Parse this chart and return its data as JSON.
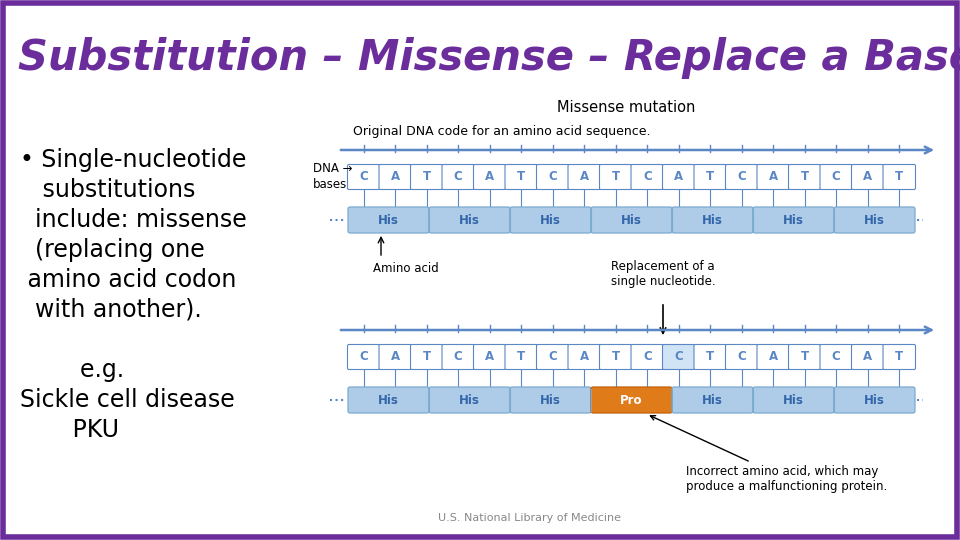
{
  "title": "Substitution – Missense – Replace a Base",
  "title_color": "#6B2D9B",
  "bg_color": "#ffffff",
  "border_color": "#6B2D9B",
  "bullet_lines": [
    "• Single-nucleotide",
    "   substitutions",
    "  include: missense",
    "  (replacing one",
    " amino acid codon",
    "  with another).",
    "",
    "        e.g.",
    "Sickle cell disease",
    "       PKU"
  ],
  "dna_bases_top": [
    "C",
    "A",
    "T",
    "C",
    "A",
    "T",
    "C",
    "A",
    "T",
    "C",
    "A",
    "T",
    "C",
    "A",
    "T",
    "C",
    "A",
    "T"
  ],
  "dna_bases_bottom": [
    "C",
    "A",
    "T",
    "C",
    "A",
    "T",
    "C",
    "A",
    "T",
    "C",
    "C",
    "T",
    "C",
    "A",
    "T",
    "C",
    "A",
    "T"
  ],
  "mutated_base_index": 10,
  "amino_acids_top": [
    "His",
    "His",
    "His",
    "His",
    "His",
    "His",
    "His"
  ],
  "amino_acids_bottom": [
    "His",
    "His",
    "His",
    "Pro",
    "His",
    "His",
    "His"
  ],
  "mutated_aa_index": 3,
  "missense_label": "Missense mutation",
  "original_label": "Original DNA code for an amino acid sequence.",
  "dna_label_line1": "DNA →",
  "dna_label_line2": "bases",
  "amino_acid_label": "Amino acid",
  "replacement_label": "Replacement of a\nsingle nucleotide.",
  "incorrect_label": "Incorrect amino acid, which may\nproduce a malfunctioning protein.",
  "source_label": "U.S. National Library of Medicine",
  "dna_color": "#5B87C5",
  "his_color": "#AECCE8",
  "pro_color": "#E07B1A",
  "arrow_color": "#5B87C5",
  "line_color": "#5B87C5",
  "his_border": "#7AAAD0"
}
